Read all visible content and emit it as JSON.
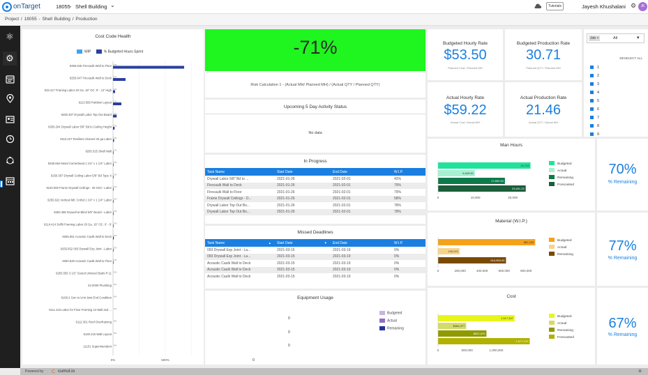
{
  "app": {
    "name": "onTarget",
    "project_code": "18055",
    "project_name": "Shell Building",
    "tutorials": "Tutorials",
    "user": "Jayesh Khushalani",
    "user_initials": "JK"
  },
  "breadcrumb": {
    "items": [
      "Project",
      "/",
      "18055 - Shell Building",
      "/",
      "Production"
    ]
  },
  "footer": {
    "powered_by": "Powered by",
    "brand": "cumul.io"
  },
  "cost_code_health": {
    "title": "Cost Code Health",
    "legend": [
      "WIP",
      "% Budgeted Hours Spent"
    ],
    "x_ticks": [
      "0%",
      "500%"
    ]
  },
  "chart_data": {
    "type": "bar",
    "title": "Cost Code Health",
    "orientation": "horizontal",
    "categories": [
      "9255.645 Firecaulk Wall to Floor",
      "9255.647 Firecaulk Wall to Deck",
      "919.417 Framing Labor 20 Ga. 16\" OC. 9' - 12' High",
      "9113.569 Partition Layout",
      "9250.307 Drywall Labor Top Out Board",
      "9250.204 Drywall Labor 5/8\" Bd to Ceiling Height",
      "9110.227 Resilient channel 25 ga Labor",
      "9250.325 Shaft Wall",
      "9255.664 Metal Cornerbead 1 1/4\" x 1 1/4\" Labor",
      "9250.367 Drywall Ceiling Labor 5/8\" Bd Type X",
      "9120.000 Frame Drywall Ceilings - 25 Grid - Labor",
      "9255.622 Vertical Mtl. Cnrbd 1 1/4\" x 1 1/4\" Labor",
      "9250.488 Drywall at Blind 5/8\" Board - Labor",
      "9114.414 Soffit Framing Labor 20 Ga. 16\" OC. 0' - 9'",
      "9255.651 Acoustic Caulk Wall to Deck",
      "9255.652 093 Drywall Exp Joint - Labor",
      "9250.649 Acoustic Caulk Wall to Floor",
      "9255.555 3 1/2\" Sound Unfaced Batts R 11",
      "22-0000 Plumbing",
      "6109.2 Gen to Unit Joist End Condition",
      "6111.215 Labor for Floor Framing 24 Wall and ...",
      "6112.301 Roof Overframing",
      "6130.215 Wall Layout",
      "11101 Superintendent"
    ],
    "series": [
      {
        "name": "WIP",
        "values": [
          2,
          3,
          2,
          2,
          1,
          3,
          2,
          2,
          2,
          2,
          2,
          2,
          2,
          2,
          2,
          2,
          2,
          2,
          0,
          0,
          0,
          0,
          0,
          0
        ]
      },
      {
        "name": "% Budgeted Hours Spent",
        "values": [
          680,
          120,
          20,
          80,
          35,
          15,
          10,
          5,
          5,
          5,
          5,
          5,
          5,
          5,
          8,
          5,
          5,
          0,
          0,
          0,
          0,
          0,
          0,
          0
        ]
      }
    ],
    "xlim": [
      0,
      700
    ]
  },
  "risk": {
    "value": "-71%",
    "calc": "Risk Calculation 1 - (Actual MH/ Planned MH) / (Actual QTY / Planned QTY)"
  },
  "activity": {
    "title": "Upcoming 5 Day Activity Status",
    "empty": "No data"
  },
  "in_progress": {
    "title": "In Progress",
    "headers": [
      "Task Name",
      "Start Date",
      "End Date",
      "W.I.P."
    ],
    "rows": [
      [
        "Drywall Labor 5/8\" Bd to ...",
        "2021-01-26",
        "2021-02-01",
        "42%"
      ],
      [
        "Firecaulk Wall to Deck",
        "2021-01-26",
        "2021-02-01",
        "79%"
      ],
      [
        "Firecaulk Wall to Floor",
        "2021-01-26",
        "2021-02-01",
        "79%"
      ],
      [
        "Frame Drywall Ceilings - D...",
        "2021-01-26",
        "2021-02-01",
        "58%"
      ],
      [
        "Drywall Labor Top Out Bo...",
        "2021-01-26",
        "2021-02-01",
        "78%"
      ],
      [
        "Drywall Labor Top Out Bo...",
        "2021-01-26",
        "2021-02-01",
        "78%"
      ]
    ]
  },
  "missed": {
    "title": "Missed Deadlines",
    "headers": [
      "Task Name",
      "Start Date",
      "End Date",
      "W.I.P."
    ],
    "rows": [
      [
        "093 Drywall Exp Joint - La...",
        "2021-03-15",
        "2021-03-19",
        "0%"
      ],
      [
        "093 Drywall Exp Joint - La...",
        "2021-03-15",
        "2021-03-19",
        "0%"
      ],
      [
        "Acoustic Caulk Wall to Deck",
        "2021-03-15",
        "2021-03-19",
        "0%"
      ],
      [
        "Acoustic Caulk Wall to Deck",
        "2021-03-15",
        "2021-03-19",
        "0%"
      ],
      [
        "Acoustic Caulk Wall to Deck",
        "2021-03-15",
        "2021-03-19",
        "0%"
      ]
    ]
  },
  "equipment": {
    "title": "Equipment Usage",
    "values": [
      "0",
      "0",
      "0"
    ],
    "legend": [
      "Budgeted",
      "Actual",
      "Remaining"
    ]
  },
  "kpis": {
    "budgeted_hourly": {
      "title": "Budgeted Hourly Rate",
      "value": "$53.50",
      "sub": "Planned Cost / Planned MH"
    },
    "budgeted_production": {
      "title": "Budgeted Production Rate",
      "value": "30.71",
      "sub": "Planned QTY / Planned MH"
    },
    "actual_hourly": {
      "title": "Actual Hourly Rate",
      "value": "$59.22",
      "sub": "Actual Cost / Actual MH"
    },
    "actual_production": {
      "title": "Actual Production Rate",
      "value": "21.46",
      "sub": "Actual QTY / Actual MH"
    }
  },
  "filter": {
    "chip": "Job",
    "select": "All",
    "deselect": "DESELECT ALL",
    "options": [
      "1",
      "2",
      "3",
      "4",
      "5",
      "6",
      "7",
      "8",
      "9"
    ]
  },
  "man_hours": {
    "title": "Man Hours",
    "labels": [
      "24,743",
      "9,849.50",
      "17,892.50",
      "23,461.22"
    ],
    "values": [
      24743,
      9849.5,
      17892.5,
      23461.22
    ],
    "legend": [
      "Budgeted",
      "Actual",
      "Remaining",
      "Forecasted"
    ],
    "ticks": [
      "0",
      "10,000",
      "20,000"
    ],
    "colors": [
      "#1fe39a",
      "#a8f0d2",
      "#0d7a4a",
      "#1b5e3a"
    ],
    "remaining_pct": "70%",
    "remaining_label": "% Remaining"
  },
  "material": {
    "title": "Material (W.I.P.)",
    "labels": [
      "882,226",
      "195,922",
      "616,983.63"
    ],
    "values": [
      882226,
      195922,
      616983.63
    ],
    "legend": [
      "Budgeted",
      "Actual",
      "Remaining"
    ],
    "ticks": [
      "0",
      "200,000",
      "400,000",
      "600,000",
      "800,000"
    ],
    "colors": [
      "#f5a21b",
      "#f7d48a",
      "#7a4a00"
    ],
    "remaining_pct": "77%",
    "remaining_label": "% Remaining"
  },
  "cost": {
    "title": "Cost",
    "labels": [
      "1,317,347",
      "$484,477",
      "$832,870",
      "1,577,479"
    ],
    "values": [
      1317347,
      484477,
      832870,
      1577479
    ],
    "legend": [
      "Budgeted",
      "Actual",
      "Remaining",
      "Forecasted"
    ],
    "ticks": [
      "0",
      "500,000",
      "1,000,000"
    ],
    "colors": [
      "#e8f51b",
      "#d2dc66",
      "#8e9a00",
      "#b0b100"
    ],
    "remaining_pct": "67%",
    "remaining_label": "% Remaining"
  }
}
